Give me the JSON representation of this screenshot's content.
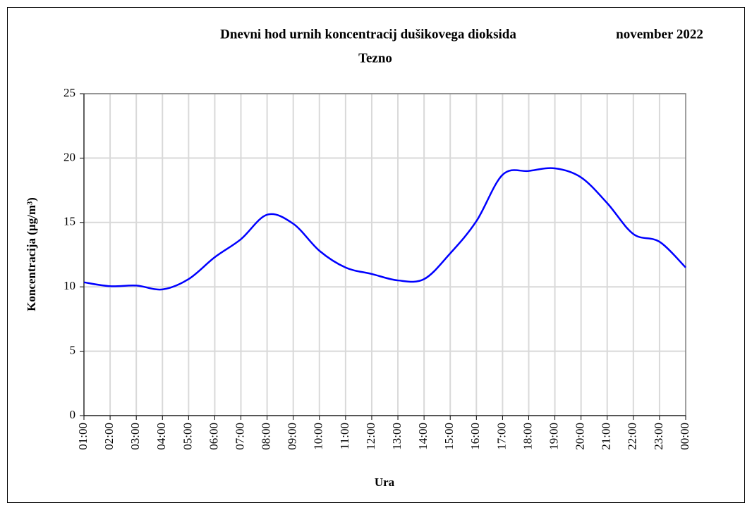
{
  "chart_data": {
    "type": "line",
    "title": "Dnevni hod urnih koncentracij dušikovega dioksida",
    "annotation": "november 2022",
    "subtitle": "Tezno",
    "x_label": "Ura",
    "y_label": "Koncentracija (µg/m³)",
    "categories": [
      "01:00",
      "02:00",
      "03:00",
      "04:00",
      "05:00",
      "06:00",
      "07:00",
      "08:00",
      "09:00",
      "10:00",
      "11:00",
      "12:00",
      "13:00",
      "14:00",
      "15:00",
      "16:00",
      "17:00",
      "18:00",
      "19:00",
      "20:00",
      "21:00",
      "22:00",
      "23:00",
      "00:00"
    ],
    "values": [
      10.35,
      10.05,
      10.1,
      9.8,
      10.6,
      12.3,
      13.7,
      15.6,
      14.9,
      12.8,
      11.5,
      11.0,
      10.5,
      10.6,
      12.6,
      15.1,
      18.7,
      19.0,
      19.2,
      18.5,
      16.5,
      14.1,
      13.5,
      11.5
    ],
    "color": "#0000ff",
    "ylim": [
      0,
      25
    ],
    "yticks": [
      0,
      5,
      10,
      15,
      20,
      25
    ],
    "grid": true
  }
}
